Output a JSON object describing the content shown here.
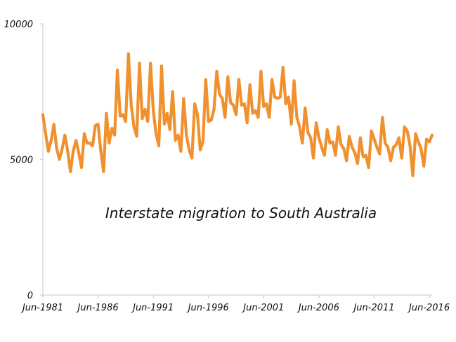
{
  "chart_data": {
    "type": "line",
    "title": "",
    "xlabel": "",
    "ylabel": "",
    "annotation": "Interstate migration to South Australia",
    "x_start": "Jun-1981",
    "x_end": "Jun-2016",
    "frequency": "quarterly",
    "x_ticks": [
      "Jun-1981",
      "Jun-1986",
      "Jun-1991",
      "Jun-1996",
      "Jun-2001",
      "Jun-2006",
      "Jun-2011",
      "Jun-2016"
    ],
    "y_ticks": [
      "0",
      "5000",
      "10000"
    ],
    "ylim": [
      0,
      10000
    ],
    "grid": false,
    "line_color": "#f0912f",
    "series": [
      {
        "values": [
          6650,
          5950,
          5300,
          5700,
          6300,
          5400,
          5000,
          5400,
          5900,
          5300,
          4550,
          5300,
          5700,
          5250,
          4700,
          5950,
          5600,
          5600,
          5500,
          6250,
          6300,
          5300,
          4550,
          6700,
          5600,
          6150,
          5900,
          8300,
          6600,
          6650,
          6400,
          8900,
          7000,
          6200,
          5850,
          8550,
          6500,
          6850,
          6400,
          8550,
          6800,
          5950,
          5500,
          8450,
          6300,
          6700,
          6100,
          7500,
          5700,
          5900,
          5300,
          7250,
          5900,
          5350,
          5050,
          7050,
          6650,
          5350,
          5650,
          7950,
          6400,
          6450,
          6850,
          8250,
          7400,
          7250,
          6550,
          8050,
          7100,
          7000,
          6650,
          7950,
          7000,
          7050,
          6350,
          7750,
          6700,
          6800,
          6550,
          8250,
          6950,
          7050,
          6550,
          7950,
          7300,
          7250,
          7300,
          8400,
          7050,
          7300,
          6300,
          7900,
          6550,
          6200,
          5600,
          6900,
          6000,
          5800,
          5050,
          6350,
          5800,
          5450,
          5150,
          6100,
          5600,
          5650,
          5150,
          6200,
          5550,
          5400,
          4950,
          5850,
          5450,
          5250,
          4850,
          5800,
          5100,
          5150,
          4700,
          6050,
          5750,
          5450,
          5200,
          6550,
          5600,
          5450,
          4950,
          5450,
          5550,
          5800,
          5050,
          6200,
          6050,
          5500,
          4400,
          5950,
          5650,
          5400,
          4750,
          5750,
          5650,
          5900
        ]
      }
    ]
  }
}
